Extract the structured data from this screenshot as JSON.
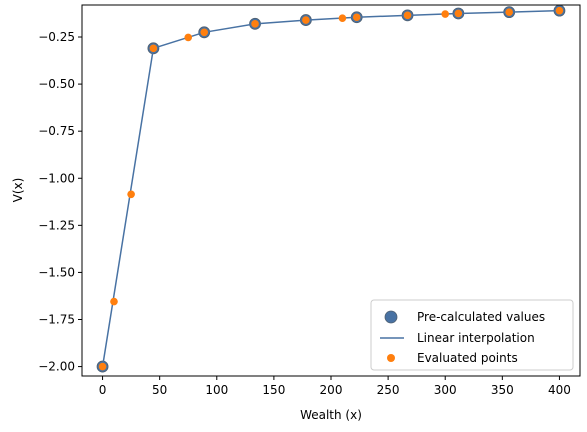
{
  "chart_data": {
    "type": "line",
    "xlabel": "Wealth (x)",
    "ylabel": "V(x)",
    "xlim": [
      -18,
      418
    ],
    "ylim": [
      -2.05,
      -0.08
    ],
    "xticks": [
      0,
      50,
      100,
      150,
      200,
      250,
      300,
      350,
      400
    ],
    "yticks": [
      -2.0,
      -1.75,
      -1.5,
      -1.25,
      -1.0,
      -0.75,
      -0.5,
      -0.25
    ],
    "xtick_labels": [
      "0",
      "50",
      "100",
      "150",
      "200",
      "250",
      "300",
      "350",
      "400"
    ],
    "ytick_labels": [
      "−2.00",
      "−1.75",
      "−1.50",
      "−1.25",
      "−1.00",
      "−0.75",
      "−0.50",
      "−0.25"
    ],
    "legend_position": "lower-right",
    "series": [
      {
        "name": "Pre-calculated values",
        "kind": "scatter",
        "color": "#4872a3",
        "x": [
          0,
          44.5,
          89,
          133.5,
          178,
          222.5,
          267,
          311.5,
          356,
          400
        ],
        "y": [
          -2.0,
          -0.31,
          -0.225,
          -0.18,
          -0.16,
          -0.145,
          -0.135,
          -0.125,
          -0.118,
          -0.11
        ]
      },
      {
        "name": "Linear interpolation",
        "kind": "line",
        "color": "#4872a3",
        "x": [
          0,
          44.5,
          89,
          133.5,
          178,
          222.5,
          267,
          311.5,
          356,
          400
        ],
        "y": [
          -2.0,
          -0.31,
          -0.225,
          -0.18,
          -0.16,
          -0.145,
          -0.135,
          -0.125,
          -0.118,
          -0.11
        ]
      },
      {
        "name": "Evaluated points",
        "kind": "scatter",
        "color": "#ff7f0e",
        "x": [
          0,
          10,
          25,
          44.5,
          75,
          89,
          133.5,
          178,
          210,
          222.5,
          267,
          300,
          311.5,
          356,
          400
        ],
        "y": [
          -2.0,
          -1.655,
          -1.085,
          -0.31,
          -0.252,
          -0.225,
          -0.18,
          -0.16,
          -0.15,
          -0.145,
          -0.135,
          -0.128,
          -0.125,
          -0.118,
          -0.11
        ]
      }
    ]
  }
}
